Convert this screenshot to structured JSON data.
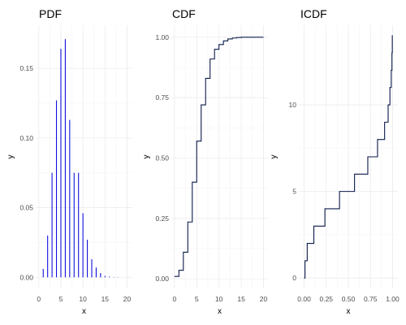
{
  "chart_data": [
    {
      "type": "bar",
      "title": "PDF",
      "xlabel": "x",
      "ylabel": "y",
      "xlim": [
        -0.7,
        21.2
      ],
      "ylim": [
        -0.008,
        0.181
      ],
      "xticks": [
        0,
        5,
        10,
        15,
        20
      ],
      "xtick_labels": [
        "0",
        "5",
        "10",
        "15",
        "20"
      ],
      "yticks": [
        0,
        0.05,
        0.1,
        0.15
      ],
      "ytick_labels": [
        "0.00",
        "0.05",
        "0.10",
        "0.15"
      ],
      "grid": true,
      "color": "#1010e0",
      "x": [
        1,
        2,
        3,
        4,
        5,
        6,
        7,
        8,
        9,
        10,
        11,
        12,
        13,
        14,
        15,
        16,
        17,
        18,
        19,
        20
      ],
      "values": [
        0.006,
        0.03,
        0.075,
        0.127,
        0.164,
        0.171,
        0.113,
        0.075,
        0.075,
        0.046,
        0.027,
        0.013,
        0.007,
        0.003,
        0.001,
        0.0005,
        0.0002,
        0.0001,
        0.0,
        0.0
      ]
    },
    {
      "type": "line",
      "step": true,
      "title": "CDF",
      "xlabel": "x",
      "ylabel": "y",
      "xlim": [
        -0.7,
        21.0
      ],
      "ylim": [
        -0.04,
        1.05
      ],
      "xticks": [
        0,
        5,
        10,
        15,
        20
      ],
      "xtick_labels": [
        "0",
        "5",
        "10",
        "15",
        "20"
      ],
      "yticks": [
        0,
        0.25,
        0.5,
        0.75,
        1.0
      ],
      "ytick_labels": [
        "0.00",
        "0.25",
        "0.50",
        "0.75",
        "1.00"
      ],
      "grid": true,
      "color": "#0b1a4a",
      "x": [
        0,
        1,
        2,
        3,
        4,
        5,
        6,
        7,
        8,
        9,
        10,
        11,
        12,
        13,
        14,
        15,
        20
      ],
      "y": [
        0.01,
        0.035,
        0.11,
        0.235,
        0.4,
        0.57,
        0.72,
        0.83,
        0.91,
        0.95,
        0.97,
        0.985,
        0.993,
        0.997,
        0.999,
        1.0,
        1.0
      ]
    },
    {
      "type": "line",
      "step": true,
      "title": "ICDF",
      "xlabel": "x",
      "ylabel": "y",
      "xlim": [
        -0.06,
        1.06
      ],
      "ylim": [
        -0.6,
        14.6
      ],
      "xticks": [
        0,
        0.25,
        0.5,
        0.75,
        1.0
      ],
      "xtick_labels": [
        "0.00",
        "0.25",
        "0.50",
        "0.75",
        "1.00"
      ],
      "yticks": [
        0,
        5,
        10
      ],
      "ytick_labels": [
        "0",
        "5",
        "10"
      ],
      "grid": true,
      "color": "#0b1a4a",
      "x": [
        0.0,
        0.01,
        0.035,
        0.11,
        0.235,
        0.4,
        0.57,
        0.72,
        0.83,
        0.91,
        0.95,
        0.97,
        0.985,
        0.993,
        0.997,
        1.0
      ],
      "y": [
        0,
        1,
        2,
        3,
        4,
        5,
        6,
        7,
        8,
        9,
        10,
        11,
        12,
        13,
        14,
        14
      ]
    }
  ]
}
